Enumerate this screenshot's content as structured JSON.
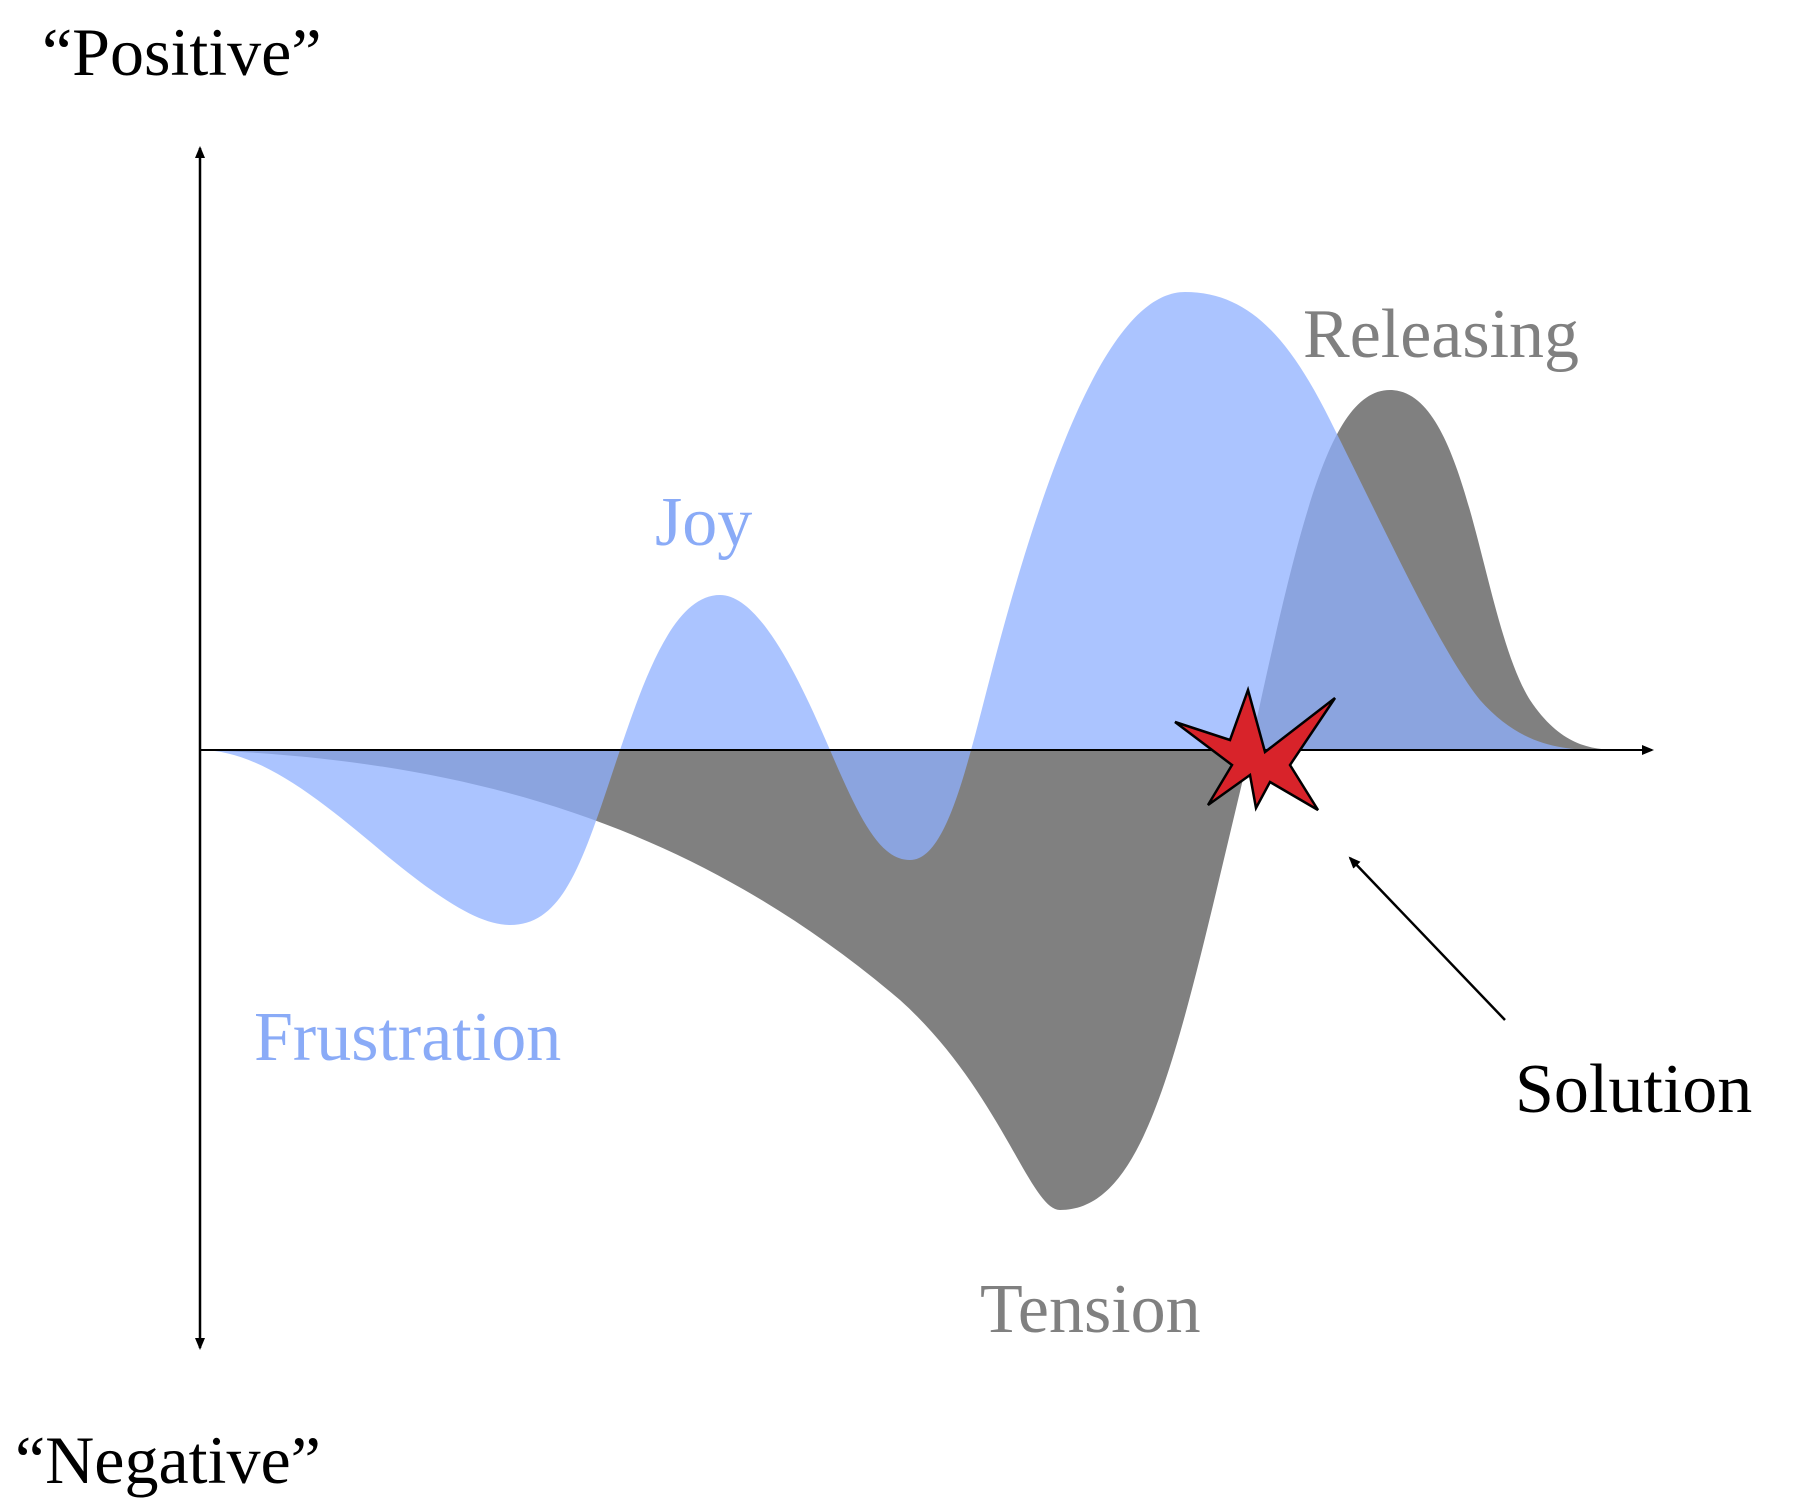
{
  "axis_labels": {
    "positive": "“Positive”",
    "negative": "“Negative”"
  },
  "curve_labels": {
    "joy": "Joy",
    "frustration": "Frustration",
    "releasing": "Releasing",
    "tension": "Tension"
  },
  "annotation": {
    "solution": "Solution"
  },
  "colors": {
    "emotion_curve": "#8fb0ff",
    "emotion_label": "#8aabf7",
    "tension_curve": "#808080",
    "tension_label": "#808080",
    "solution_star": "#d8232a",
    "axis": "#000000"
  }
}
